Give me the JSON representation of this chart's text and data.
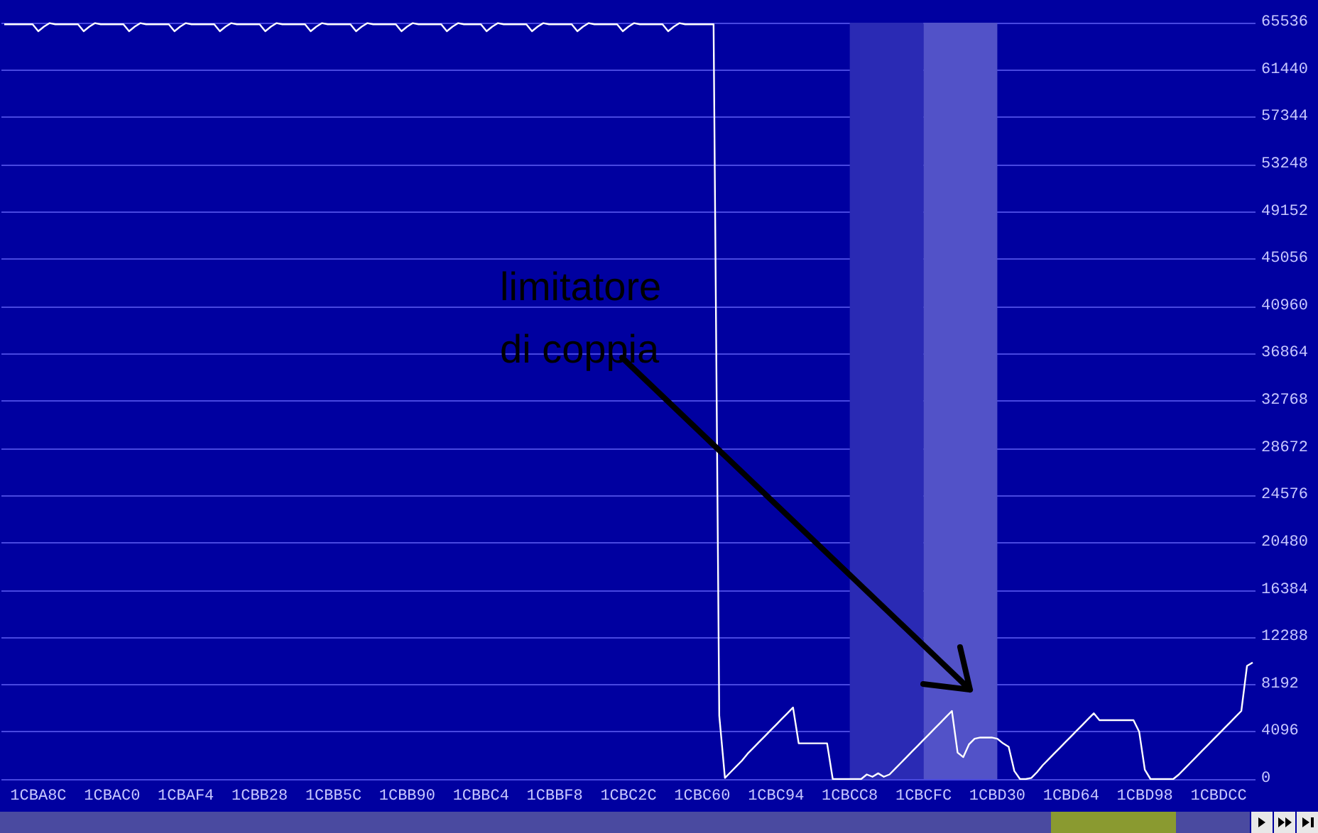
{
  "chart_data": {
    "type": "line",
    "annotations": [
      "limitatore\ndi coppia"
    ],
    "categories": [
      null,
      null,
      null,
      null,
      null,
      null,
      "1CBA8C",
      null,
      null,
      null,
      null,
      null,
      null,
      null,
      null,
      null,
      null,
      null,
      null,
      "1CBAC0",
      null,
      null,
      null,
      null,
      null,
      null,
      null,
      null,
      null,
      null,
      null,
      null,
      "1CBAF4",
      null,
      null,
      null,
      null,
      null,
      null,
      null,
      null,
      null,
      null,
      null,
      null,
      "1CBB28",
      null,
      null,
      null,
      null,
      null,
      null,
      null,
      null,
      null,
      null,
      null,
      null,
      "1CBB5C",
      null,
      null,
      null,
      null,
      null,
      null,
      null,
      null,
      null,
      null,
      null,
      null,
      "1CBB90",
      null,
      null,
      null,
      null,
      null,
      null,
      null,
      null,
      null,
      null,
      null,
      null,
      "1CBBC4",
      null,
      null,
      null,
      null,
      null,
      null,
      null,
      null,
      null,
      null,
      null,
      null,
      "1CBBF8",
      null,
      null,
      null,
      null,
      null,
      null,
      null,
      null,
      null,
      null,
      null,
      null,
      "1CBC2C",
      null,
      null,
      null,
      null,
      null,
      null,
      null,
      null,
      null,
      null,
      null,
      null,
      "1CBC60",
      null,
      null,
      null,
      null,
      null,
      null,
      null,
      null,
      null,
      null,
      null,
      null,
      "1CBC94",
      null,
      null,
      null,
      null,
      null,
      null,
      null,
      null,
      null,
      null,
      null,
      null,
      "1CBCC8",
      null,
      null,
      null,
      null,
      null,
      null,
      null,
      null,
      null,
      null,
      null,
      null,
      "1CBCFC",
      null,
      null,
      null,
      null,
      null,
      null,
      null,
      null,
      null,
      null,
      null,
      null,
      "1CBD30",
      null,
      null,
      null,
      null,
      null,
      null,
      null,
      null,
      null,
      null,
      null,
      null,
      "1CBD64",
      null,
      null,
      null,
      null,
      null,
      null,
      null,
      null,
      null,
      null,
      null,
      null,
      "1CBD98",
      null,
      null,
      null,
      null,
      null,
      null,
      null,
      null,
      null,
      null,
      null,
      null,
      "1CBDCC",
      null,
      null,
      null,
      null,
      null,
      null
    ],
    "series": [
      {
        "color": "#ffffff",
        "values": [
          65400,
          65400,
          65400,
          65400,
          65400,
          65400,
          64800,
          65200,
          65500,
          65400,
          65400,
          65400,
          65400,
          65400,
          64800,
          65200,
          65500,
          65400,
          65400,
          65400,
          65400,
          65400,
          64800,
          65200,
          65500,
          65400,
          65400,
          65400,
          65400,
          65400,
          64800,
          65200,
          65500,
          65400,
          65400,
          65400,
          65400,
          65400,
          64800,
          65200,
          65500,
          65400,
          65400,
          65400,
          65400,
          65400,
          64800,
          65200,
          65500,
          65400,
          65400,
          65400,
          65400,
          65400,
          64800,
          65200,
          65500,
          65400,
          65400,
          65400,
          65400,
          65400,
          64800,
          65200,
          65500,
          65400,
          65400,
          65400,
          65400,
          65400,
          64800,
          65200,
          65500,
          65400,
          65400,
          65400,
          65400,
          65400,
          64800,
          65200,
          65500,
          65400,
          65400,
          65400,
          65400,
          64800,
          65200,
          65500,
          65400,
          65400,
          65400,
          65400,
          65400,
          64800,
          65200,
          65500,
          65400,
          65400,
          65400,
          65400,
          65400,
          64800,
          65200,
          65500,
          65400,
          65400,
          65400,
          65400,
          65400,
          64800,
          65200,
          65500,
          65400,
          65400,
          65400,
          65400,
          65400,
          64800,
          65200,
          65500,
          65400,
          65400,
          65400,
          65400,
          65400,
          65400,
          5500,
          100,
          600,
          1100,
          1600,
          2200,
          2700,
          3200,
          3700,
          4200,
          4700,
          5200,
          5700,
          6200,
          3100,
          3100,
          3100,
          3100,
          3100,
          3100,
          0,
          0,
          0,
          0,
          0,
          0,
          400,
          200,
          500,
          200,
          400,
          900,
          1400,
          1900,
          2400,
          2900,
          3400,
          3900,
          4400,
          4900,
          5400,
          5900,
          2300,
          1900,
          3000,
          3500,
          3600,
          3600,
          3600,
          3500,
          3100,
          2800,
          700,
          0,
          0,
          100,
          600,
          1200,
          1700,
          2200,
          2700,
          3200,
          3700,
          4200,
          4700,
          5200,
          5700,
          5100,
          5100,
          5100,
          5100,
          5100,
          5100,
          5100,
          4100,
          800,
          0,
          0,
          0,
          0,
          0,
          400,
          900,
          1400,
          1900,
          2400,
          2900,
          3400,
          3900,
          4400,
          4900,
          5400,
          5900,
          9800,
          10100
        ]
      }
    ],
    "ylim": [
      0,
      65536
    ],
    "yticks": [
      0,
      4096,
      8192,
      12288,
      16384,
      20480,
      24576,
      28672,
      32768,
      36864,
      40960,
      45056,
      49152,
      53248,
      57344,
      61440,
      65536
    ],
    "bands": [
      {
        "axis": "x",
        "from": "1CBCC8",
        "to": "1CBCFC",
        "color": "#2a2ab4"
      },
      {
        "axis": "x",
        "from": "1CBCFC",
        "to": "1CBD30",
        "color": "#5252c8"
      }
    ],
    "grid": "y",
    "marker": "none",
    "line_style": "solid"
  }
}
